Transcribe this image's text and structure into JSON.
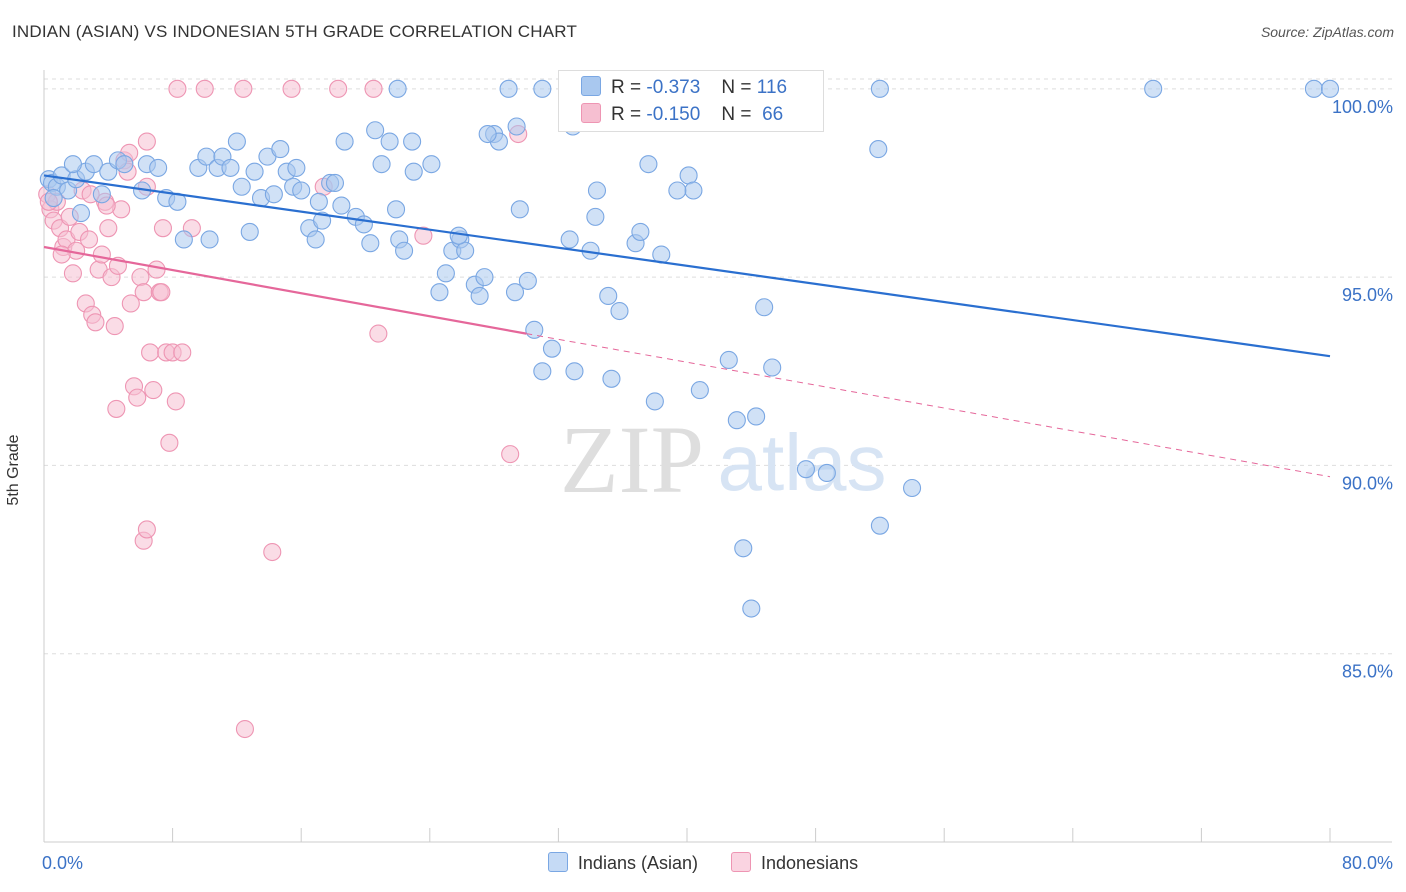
{
  "title": "INDIAN (ASIAN) VS INDONESIAN 5TH GRADE CORRELATION CHART",
  "source": "Source: ZipAtlas.com",
  "watermark": {
    "zip": "ZIP",
    "atlas": "atlas"
  },
  "legend": {
    "rows": [
      {
        "r_label": "R =",
        "r_value": "-0.373",
        "n_label": "N =",
        "n_value": "116"
      },
      {
        "r_label": "R =",
        "r_value": "-0.150",
        "n_label": "N =",
        "n_value": "66"
      }
    ]
  },
  "colors": {
    "blue_fill": "#a9c8ef",
    "blue_stroke": "#7aa7e3",
    "blue_line": "#2a6fd0",
    "pink_fill": "#f6bfd1",
    "pink_stroke": "#ee95b3",
    "pink_line": "#e5679a",
    "tick_label": "#3b72c6",
    "grid": "#dddddd"
  },
  "chart_data": {
    "type": "scatter",
    "title": "INDIAN (ASIAN) VS INDONESIAN 5TH GRADE CORRELATION CHART",
    "xlabel": "",
    "ylabel": "5th Grade",
    "xlim": [
      0,
      80
    ],
    "ylim": [
      80.0,
      100.5
    ],
    "x_tick_labels": [
      "0.0%",
      "80.0%"
    ],
    "y_ticks": [
      85,
      90,
      95,
      100
    ],
    "y_tick_labels": [
      "85.0%",
      "90.0%",
      "95.0%",
      "100.0%"
    ],
    "grid": true,
    "legend_position": "top-center",
    "series": [
      {
        "name": "Indians (Asian)",
        "color": "#a9c8ef",
        "r": -0.373,
        "n": 116,
        "trend": {
          "x": [
            0,
            80
          ],
          "y": [
            97.7,
            92.9
          ]
        },
        "points": [
          [
            0.3,
            97.6
          ],
          [
            0.5,
            97.5
          ],
          [
            0.8,
            97.4
          ],
          [
            1.1,
            97.7
          ],
          [
            1.5,
            97.3
          ],
          [
            2.0,
            97.6
          ],
          [
            2.6,
            97.8
          ],
          [
            3.1,
            98.0
          ],
          [
            3.6,
            97.2
          ],
          [
            4.0,
            97.8
          ],
          [
            4.6,
            98.1
          ],
          [
            5.0,
            98.0
          ],
          [
            6.1,
            97.3
          ],
          [
            6.4,
            98.0
          ],
          [
            7.1,
            97.9
          ],
          [
            7.6,
            97.1
          ],
          [
            8.3,
            97.0
          ],
          [
            9.6,
            97.9
          ],
          [
            10.1,
            98.2
          ],
          [
            10.8,
            97.9
          ],
          [
            11.1,
            98.2
          ],
          [
            11.6,
            97.9
          ],
          [
            12.0,
            98.6
          ],
          [
            12.3,
            97.4
          ],
          [
            12.8,
            96.2
          ],
          [
            13.1,
            97.8
          ],
          [
            13.5,
            97.1
          ],
          [
            13.9,
            98.2
          ],
          [
            14.3,
            97.2
          ],
          [
            14.7,
            98.4
          ],
          [
            15.1,
            97.8
          ],
          [
            15.5,
            97.4
          ],
          [
            16.0,
            97.3
          ],
          [
            16.5,
            96.3
          ],
          [
            16.9,
            96.0
          ],
          [
            17.3,
            96.5
          ],
          [
            17.8,
            97.5
          ],
          [
            18.1,
            97.5
          ],
          [
            18.5,
            96.9
          ],
          [
            18.7,
            98.6
          ],
          [
            19.4,
            96.6
          ],
          [
            19.9,
            96.4
          ],
          [
            20.3,
            95.9
          ],
          [
            20.6,
            98.9
          ],
          [
            21.0,
            98.0
          ],
          [
            21.5,
            98.6
          ],
          [
            22.1,
            96.0
          ],
          [
            22.4,
            95.7
          ],
          [
            22.9,
            98.6
          ],
          [
            23.0,
            97.8
          ],
          [
            24.1,
            98.0
          ],
          [
            24.6,
            94.6
          ],
          [
            25.0,
            95.1
          ],
          [
            25.4,
            95.7
          ],
          [
            25.9,
            96.0
          ],
          [
            26.2,
            95.7
          ],
          [
            26.8,
            94.8
          ],
          [
            27.1,
            94.5
          ],
          [
            27.4,
            95.0
          ],
          [
            28.0,
            98.8
          ],
          [
            29.3,
            94.6
          ],
          [
            29.6,
            96.8
          ],
          [
            30.1,
            94.9
          ],
          [
            30.5,
            93.6
          ],
          [
            31.0,
            92.5
          ],
          [
            31.6,
            93.1
          ],
          [
            32.7,
            96.0
          ],
          [
            33.0,
            92.5
          ],
          [
            34.0,
            95.7
          ],
          [
            34.4,
            97.3
          ],
          [
            35.1,
            94.5
          ],
          [
            35.3,
            92.3
          ],
          [
            35.8,
            94.1
          ],
          [
            36.8,
            95.9
          ],
          [
            37.1,
            96.2
          ],
          [
            38.0,
            91.7
          ],
          [
            38.4,
            95.6
          ],
          [
            40.1,
            97.7
          ],
          [
            40.4,
            97.3
          ],
          [
            40.8,
            92.0
          ],
          [
            42.6,
            92.8
          ],
          [
            43.1,
            91.2
          ],
          [
            44.3,
            91.3
          ],
          [
            44.8,
            94.2
          ],
          [
            45.3,
            92.6
          ],
          [
            47.4,
            89.9
          ],
          [
            48.7,
            89.8
          ],
          [
            51.9,
            98.4
          ],
          [
            52.0,
            88.4
          ],
          [
            54.0,
            89.4
          ],
          [
            43.5,
            87.8
          ],
          [
            44.0,
            86.2
          ],
          [
            22.0,
            100.0
          ],
          [
            31.0,
            100.0
          ],
          [
            52.0,
            100.0
          ],
          [
            69.0,
            100.0
          ],
          [
            79.0,
            100.0
          ],
          [
            80.0,
            100.0
          ],
          [
            28.3,
            98.6
          ],
          [
            27.6,
            98.8
          ],
          [
            2.3,
            96.7
          ],
          [
            8.7,
            96.0
          ],
          [
            10.3,
            96.0
          ],
          [
            15.7,
            97.9
          ],
          [
            17.1,
            97.0
          ],
          [
            21.9,
            96.8
          ],
          [
            25.8,
            96.1
          ],
          [
            29.4,
            99.0
          ],
          [
            32.9,
            99.0
          ],
          [
            34.3,
            96.6
          ],
          [
            37.6,
            98.0
          ],
          [
            39.4,
            97.3
          ],
          [
            45.0,
            100.0
          ],
          [
            28.9,
            100.0
          ],
          [
            0.6,
            97.1
          ],
          [
            1.8,
            98.0
          ]
        ]
      },
      {
        "name": "Indonesians",
        "color": "#f6bfd1",
        "r": -0.15,
        "n": 66,
        "trend_solid": {
          "x": [
            0,
            30
          ],
          "y": [
            95.8,
            93.5
          ]
        },
        "trend_dashed": {
          "x": [
            30,
            80
          ],
          "y": [
            93.5,
            89.7
          ]
        },
        "points": [
          [
            0.2,
            97.2
          ],
          [
            0.4,
            96.8
          ],
          [
            0.6,
            96.5
          ],
          [
            0.8,
            97.0
          ],
          [
            1.0,
            96.3
          ],
          [
            1.2,
            95.8
          ],
          [
            1.4,
            96.0
          ],
          [
            1.6,
            96.6
          ],
          [
            1.8,
            95.1
          ],
          [
            2.0,
            95.7
          ],
          [
            2.2,
            96.2
          ],
          [
            2.4,
            97.3
          ],
          [
            2.6,
            94.3
          ],
          [
            2.8,
            96.0
          ],
          [
            3.0,
            94.0
          ],
          [
            3.2,
            93.8
          ],
          [
            3.4,
            95.2
          ],
          [
            3.6,
            95.6
          ],
          [
            3.8,
            97.0
          ],
          [
            4.0,
            96.3
          ],
          [
            4.2,
            95.0
          ],
          [
            4.4,
            93.7
          ],
          [
            4.6,
            95.3
          ],
          [
            4.8,
            96.8
          ],
          [
            5.0,
            98.1
          ],
          [
            5.2,
            97.8
          ],
          [
            5.4,
            94.3
          ],
          [
            5.6,
            92.1
          ],
          [
            5.8,
            91.8
          ],
          [
            6.0,
            95.0
          ],
          [
            6.2,
            94.6
          ],
          [
            6.4,
            97.4
          ],
          [
            6.6,
            93.0
          ],
          [
            6.8,
            92.0
          ],
          [
            7.0,
            95.2
          ],
          [
            7.2,
            94.6
          ],
          [
            7.4,
            96.3
          ],
          [
            7.6,
            93.0
          ],
          [
            7.8,
            90.6
          ],
          [
            8.0,
            93.0
          ],
          [
            8.2,
            91.7
          ],
          [
            8.6,
            93.0
          ],
          [
            9.2,
            96.3
          ],
          [
            10.0,
            100.0
          ],
          [
            12.4,
            100.0
          ],
          [
            15.4,
            100.0
          ],
          [
            18.3,
            100.0
          ],
          [
            20.5,
            100.0
          ],
          [
            8.3,
            100.0
          ],
          [
            6.4,
            98.6
          ],
          [
            6.2,
            88.0
          ],
          [
            6.4,
            88.3
          ],
          [
            14.2,
            87.7
          ],
          [
            12.5,
            83.0
          ],
          [
            20.8,
            93.5
          ],
          [
            29.0,
            90.3
          ],
          [
            29.5,
            98.8
          ],
          [
            23.6,
            96.1
          ],
          [
            17.4,
            97.4
          ],
          [
            1.1,
            95.6
          ],
          [
            2.9,
            97.2
          ],
          [
            3.9,
            96.9
          ],
          [
            4.5,
            91.5
          ],
          [
            5.3,
            98.3
          ],
          [
            7.3,
            94.6
          ],
          [
            0.3,
            97.0
          ]
        ]
      }
    ]
  }
}
